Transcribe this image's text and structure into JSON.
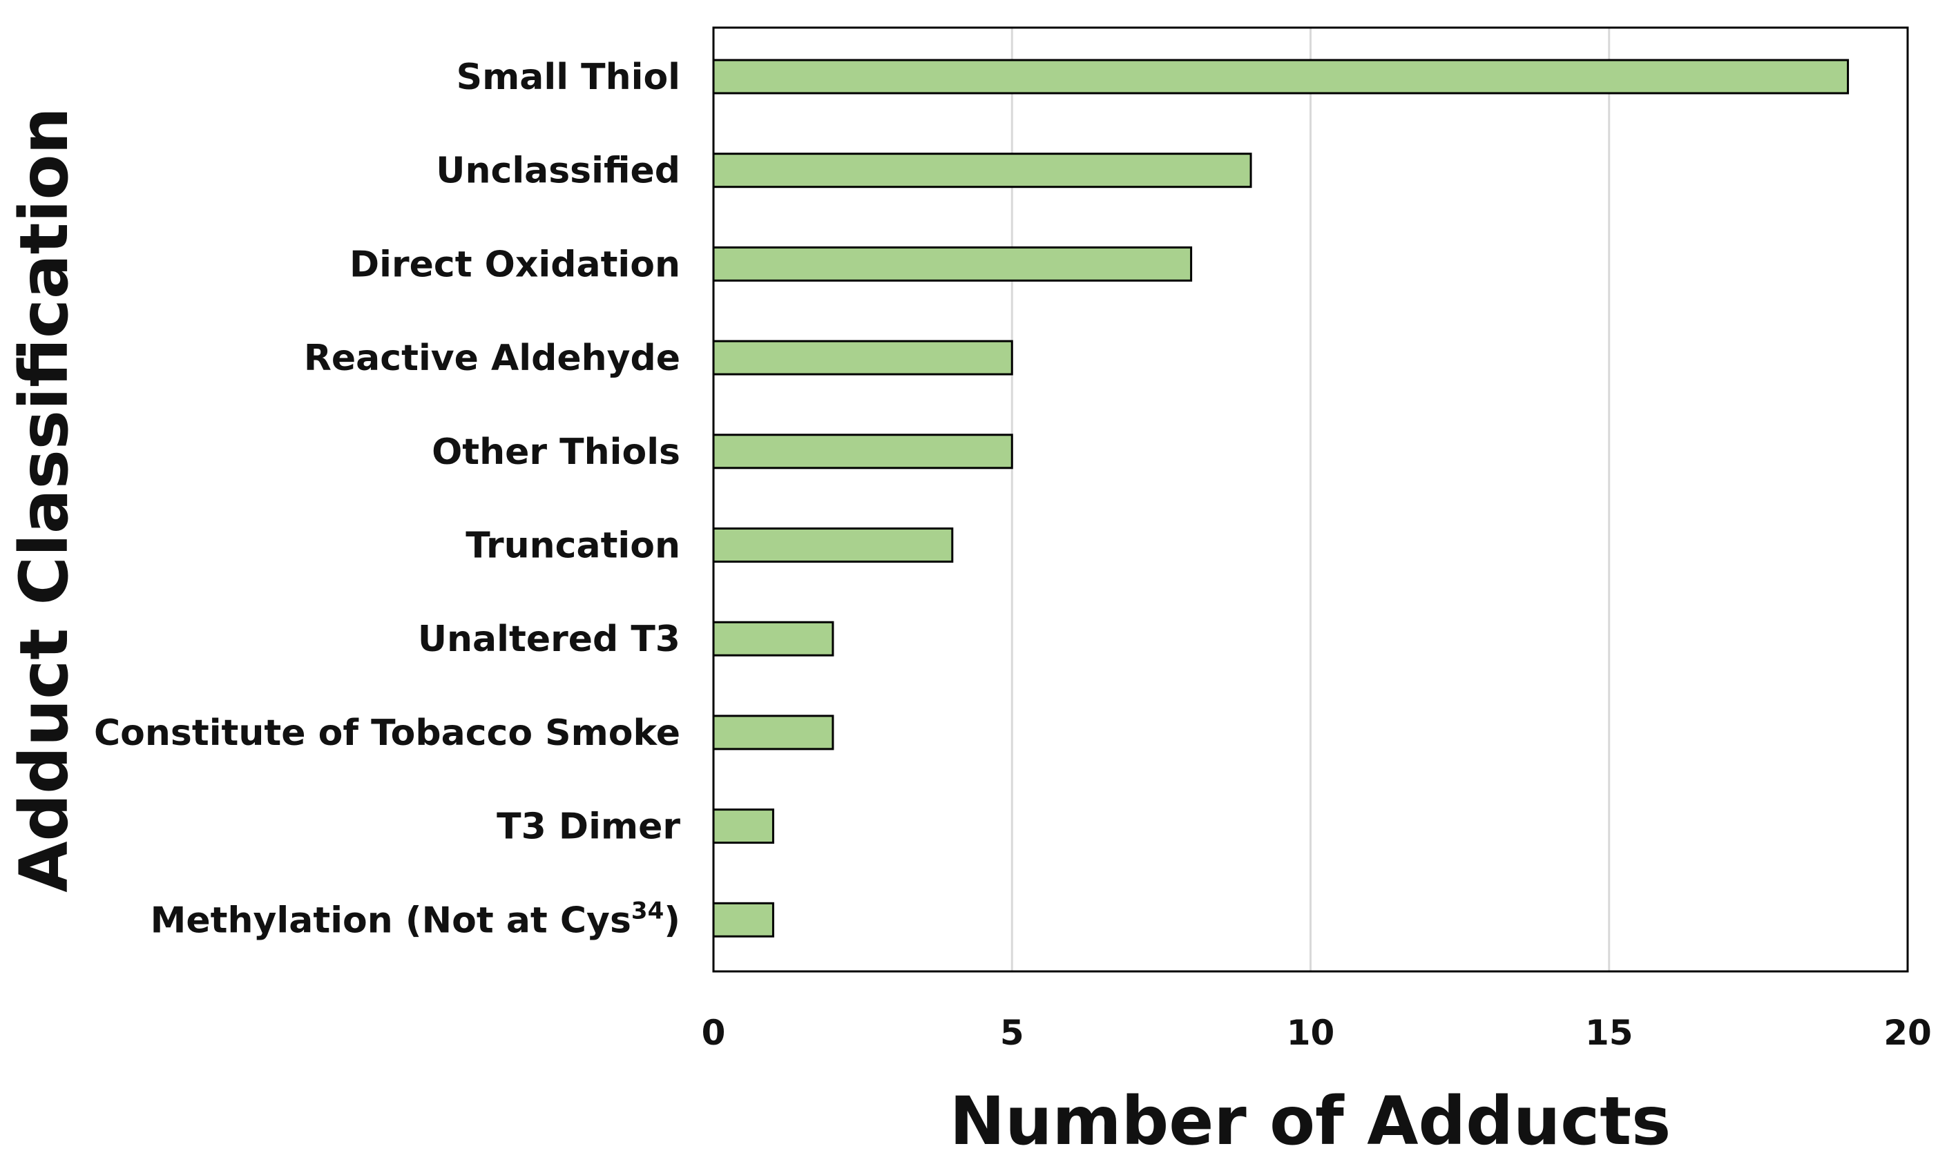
{
  "chart_data": {
    "type": "bar",
    "orientation": "horizontal",
    "categories": [
      {
        "label": "Small Thiol",
        "sup": ""
      },
      {
        "label": "Unclassified",
        "sup": ""
      },
      {
        "label": "Direct Oxidation",
        "sup": ""
      },
      {
        "label": "Reactive Aldehyde",
        "sup": ""
      },
      {
        "label": "Other Thiols",
        "sup": ""
      },
      {
        "label": "Truncation",
        "sup": ""
      },
      {
        "label": "Unaltered T3",
        "sup": ""
      },
      {
        "label": "Constitute of Tobacco Smoke",
        "sup": ""
      },
      {
        "label": "T3 Dimer",
        "sup": ""
      },
      {
        "label": "Methylation (Not at Cys",
        "sup": "34",
        "suffix": ")"
      }
    ],
    "values": [
      19,
      9,
      8,
      5,
      5,
      4,
      2,
      2,
      1,
      1
    ],
    "title": "",
    "xlabel": "Number of Adducts",
    "ylabel": "Adduct Classification",
    "xlim": [
      0,
      20
    ],
    "xticks": [
      0,
      5,
      10,
      15,
      20
    ],
    "grid": "vertical",
    "bar_color": "#a9d18e",
    "bar_edge_color": "#000000"
  }
}
